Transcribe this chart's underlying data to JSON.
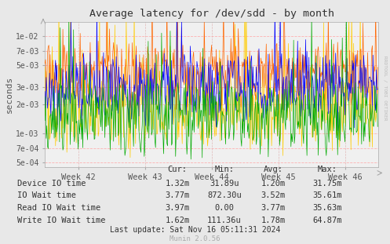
{
  "title": "Average latency for /dev/sdd - by month",
  "ylabel": "seconds",
  "background_color": "#e8e8e8",
  "plot_background": "#f0f0f0",
  "grid_color_h": "#ffaaaa",
  "grid_color_v": "#ddaaaa",
  "x_labels": [
    "Week 42",
    "Week 43",
    "Week 44",
    "Week 45",
    "Week 46"
  ],
  "ylim_min": 0.00045,
  "ylim_max": 0.014,
  "yticks": [
    0.0005,
    0.0007,
    0.001,
    0.002,
    0.003,
    0.005,
    0.007,
    0.01
  ],
  "ytick_labels": [
    "5e-04",
    "7e-04",
    "1e-03",
    "2e-03",
    "3e-03",
    "5e-03",
    "7e-03",
    "1e-02"
  ],
  "series": [
    {
      "name": "Device IO time",
      "color": "#00aa00"
    },
    {
      "name": "IO Wait time",
      "color": "#0000ff"
    },
    {
      "name": "Read IO Wait time",
      "color": "#ff6600"
    },
    {
      "name": "Write IO Wait time",
      "color": "#ffcc00"
    }
  ],
  "legend_table": {
    "header": [
      "Cur:",
      "Min:",
      "Avg:",
      "Max:"
    ],
    "rows": [
      [
        "Device IO time",
        "1.32m",
        "31.89u",
        "1.20m",
        "31.75m"
      ],
      [
        "IO Wait time",
        "3.77m",
        "872.30u",
        "3.52m",
        "35.61m"
      ],
      [
        "Read IO Wait time",
        "3.97m",
        "0.00",
        "3.77m",
        "35.63m"
      ],
      [
        "Write IO Wait time",
        "1.62m",
        "111.36u",
        "1.78m",
        "64.87m"
      ]
    ]
  },
  "last_update": "Last update: Sat Nov 16 05:11:31 2024",
  "munin_version": "Munin 2.0.56",
  "rrdtool_label": "RRDTOOL / TOBI OETIKER",
  "n_points": 500,
  "week_positions": [
    50,
    150,
    250,
    350,
    450
  ]
}
